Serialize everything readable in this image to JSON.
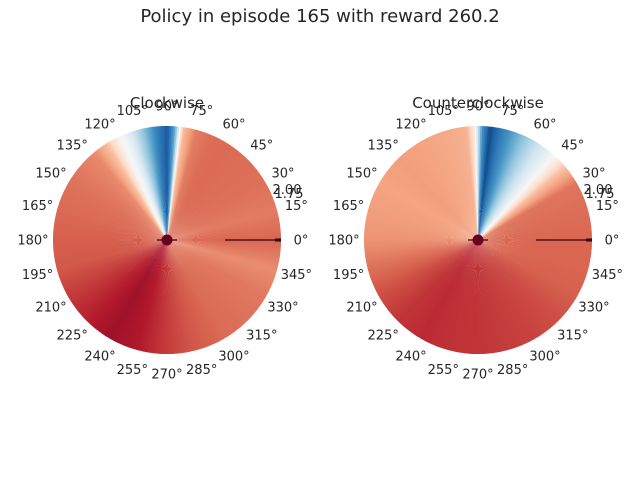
{
  "title": "Policy in episode 165 with reward 260.2",
  "chart_data": [
    {
      "type": "heatmap",
      "projection": "polar",
      "title": "Clockwise",
      "theta_tick_labels": [
        "0°",
        "15°",
        "30°",
        "45°",
        "60°",
        "75°",
        "90°",
        "105°",
        "120°",
        "135°",
        "150°",
        "165°",
        "180°",
        "195°",
        "210°",
        "225°",
        "240°",
        "255°",
        "270°",
        "285°",
        "300°",
        "315°",
        "330°",
        "345°"
      ],
      "r_tick_labels": [
        "1.75",
        "2.00"
      ],
      "colormap": [
        "#053061",
        "#2166ac",
        "#4393c3",
        "#92c5de",
        "#d1e5f0",
        "#f7f7f7",
        "#fddbc7",
        "#f4a582",
        "#d6604d",
        "#b2182b",
        "#67001f"
      ],
      "value_range": [
        -1,
        1
      ],
      "sectors": [
        {
          "theta_deg": 0,
          "value": 0.58
        },
        {
          "theta_deg": 15,
          "value": 0.52
        },
        {
          "theta_deg": 30,
          "value": 0.55
        },
        {
          "theta_deg": 45,
          "value": 0.56
        },
        {
          "theta_deg": 60,
          "value": 0.57
        },
        {
          "theta_deg": 67,
          "value": 0.56
        },
        {
          "theta_deg": 75,
          "value": 0.52
        },
        {
          "theta_deg": 82,
          "value": 0.3
        },
        {
          "theta_deg": 86,
          "value": -0.5
        },
        {
          "theta_deg": 90,
          "value": -0.85
        },
        {
          "theta_deg": 95,
          "value": -0.7
        },
        {
          "theta_deg": 100,
          "value": -0.5
        },
        {
          "theta_deg": 105,
          "value": -0.3
        },
        {
          "theta_deg": 110,
          "value": -0.1
        },
        {
          "theta_deg": 116,
          "value": 0.05
        },
        {
          "theta_deg": 122,
          "value": 0.3
        },
        {
          "theta_deg": 130,
          "value": 0.48
        },
        {
          "theta_deg": 140,
          "value": 0.52
        },
        {
          "theta_deg": 150,
          "value": 0.55
        },
        {
          "theta_deg": 165,
          "value": 0.57
        },
        {
          "theta_deg": 180,
          "value": 0.6
        },
        {
          "theta_deg": 195,
          "value": 0.62
        },
        {
          "theta_deg": 210,
          "value": 0.7
        },
        {
          "theta_deg": 225,
          "value": 0.78
        },
        {
          "theta_deg": 240,
          "value": 0.85
        },
        {
          "theta_deg": 255,
          "value": 0.8
        },
        {
          "theta_deg": 270,
          "value": 0.7
        },
        {
          "theta_deg": 285,
          "value": 0.62
        },
        {
          "theta_deg": 300,
          "value": 0.57
        },
        {
          "theta_deg": 315,
          "value": 0.55
        },
        {
          "theta_deg": 330,
          "value": 0.53
        },
        {
          "theta_deg": 345,
          "value": 0.47
        }
      ]
    },
    {
      "type": "heatmap",
      "projection": "polar",
      "title": "Counterclockwise",
      "theta_tick_labels": [
        "0°",
        "15°",
        "30°",
        "45°",
        "60°",
        "75°",
        "90°",
        "105°",
        "120°",
        "135°",
        "150°",
        "165°",
        "180°",
        "195°",
        "210°",
        "225°",
        "240°",
        "255°",
        "270°",
        "285°",
        "300°",
        "315°",
        "330°",
        "345°"
      ],
      "r_tick_labels": [
        "1.75",
        "2.00"
      ],
      "colormap": [
        "#053061",
        "#2166ac",
        "#4393c3",
        "#92c5de",
        "#d1e5f0",
        "#f7f7f7",
        "#fddbc7",
        "#f4a582",
        "#d6604d",
        "#b2182b",
        "#67001f"
      ],
      "value_range": [
        -1,
        1
      ],
      "sectors": [
        {
          "theta_deg": 0,
          "value": 0.58
        },
        {
          "theta_deg": 15,
          "value": 0.56
        },
        {
          "theta_deg": 30,
          "value": 0.54
        },
        {
          "theta_deg": 40,
          "value": 0.3
        },
        {
          "theta_deg": 48,
          "value": 0.0
        },
        {
          "theta_deg": 55,
          "value": -0.15
        },
        {
          "theta_deg": 62,
          "value": -0.3
        },
        {
          "theta_deg": 70,
          "value": -0.5
        },
        {
          "theta_deg": 78,
          "value": -0.7
        },
        {
          "theta_deg": 84,
          "value": -0.9
        },
        {
          "theta_deg": 88,
          "value": -0.6
        },
        {
          "theta_deg": 92,
          "value": 0.1
        },
        {
          "theta_deg": 96,
          "value": 0.35
        },
        {
          "theta_deg": 105,
          "value": 0.38
        },
        {
          "theta_deg": 120,
          "value": 0.4
        },
        {
          "theta_deg": 135,
          "value": 0.42
        },
        {
          "theta_deg": 150,
          "value": 0.4
        },
        {
          "theta_deg": 165,
          "value": 0.42
        },
        {
          "theta_deg": 180,
          "value": 0.45
        },
        {
          "theta_deg": 195,
          "value": 0.55
        },
        {
          "theta_deg": 210,
          "value": 0.65
        },
        {
          "theta_deg": 225,
          "value": 0.72
        },
        {
          "theta_deg": 240,
          "value": 0.75
        },
        {
          "theta_deg": 255,
          "value": 0.73
        },
        {
          "theta_deg": 270,
          "value": 0.72
        },
        {
          "theta_deg": 285,
          "value": 0.7
        },
        {
          "theta_deg": 300,
          "value": 0.68
        },
        {
          "theta_deg": 315,
          "value": 0.65
        },
        {
          "theta_deg": 330,
          "value": 0.6
        },
        {
          "theta_deg": 345,
          "value": 0.58
        }
      ]
    }
  ]
}
